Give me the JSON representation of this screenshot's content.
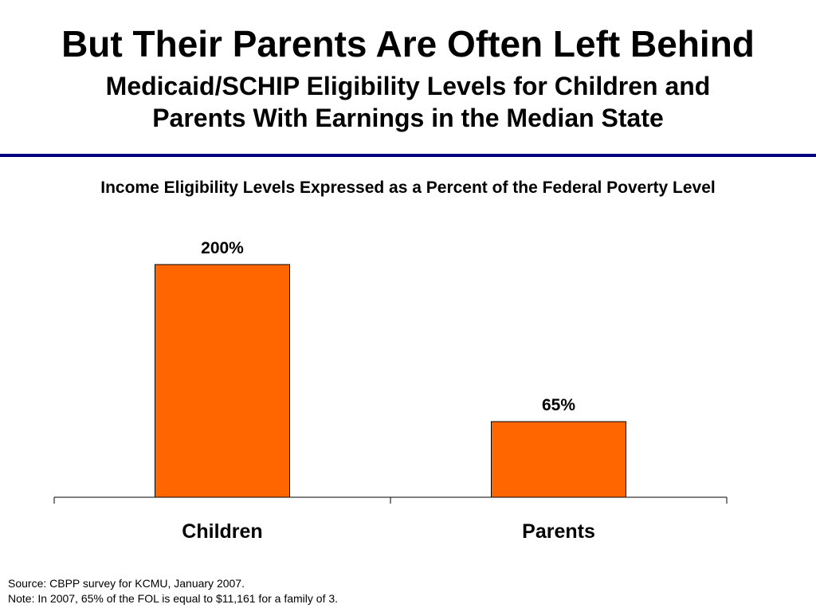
{
  "slide": {
    "title": "But Their Parents Are Often Left Behind",
    "subtitle_line1": "Medicaid/SCHIP Eligibility Levels for Children and",
    "subtitle_line2": "Parents With Earnings in the Median State",
    "source": "Source: CBPP survey for KCMU, January 2007.",
    "note": "Note: In 2007, 65% of the FOL is equal to $11,161 for a family of 3."
  },
  "colors": {
    "bar": "#FF6600",
    "bar_border": "#000000",
    "rule": "#000080"
  },
  "chart_data": {
    "type": "bar",
    "title": "Income Eligibility Levels Expressed as a Percent of the Federal Poverty Level",
    "categories": [
      "Children",
      "Parents"
    ],
    "values": [
      200,
      65
    ],
    "data_labels": [
      "200%",
      "65%"
    ],
    "xlabel": "",
    "ylabel": "",
    "ylim": [
      0,
      200
    ],
    "grid": false,
    "legend": "none"
  }
}
